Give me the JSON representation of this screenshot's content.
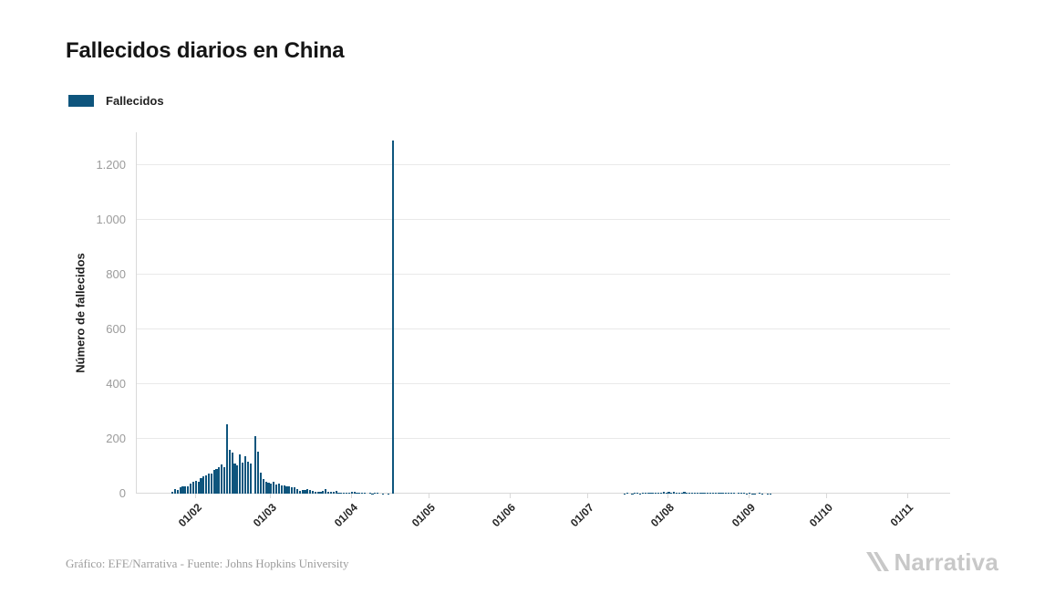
{
  "header": {
    "title": "Fallecidos diarios en China"
  },
  "legend": {
    "label": "Fallecidos"
  },
  "footer": {
    "credit": "Gráfico: EFE/Narrativa - Fuente: Johns Hopkins University",
    "brand": "Narrativa"
  },
  "colors": {
    "bar": "#0e557d",
    "grid": "#e9e9e9",
    "axis_line": "#d9d9d9",
    "y_tick_text": "#9b9b9b",
    "x_tick_text": "#262626",
    "footer_text": "#9c9c9c",
    "brand_gray": "#c8c8c8"
  },
  "chart_data": {
    "type": "bar",
    "title": "Fallecidos diarios en China",
    "xlabel": "",
    "ylabel": "Número de fallecidos",
    "ylim": [
      0,
      1300
    ],
    "grid": "horizontal",
    "legend_position": "top-left",
    "legend_entries": [
      "Fallecidos"
    ],
    "yticks": [
      {
        "label": "0",
        "value": 0
      },
      {
        "label": "200",
        "value": 200
      },
      {
        "label": "400",
        "value": 400
      },
      {
        "label": "600",
        "value": 600
      },
      {
        "label": "800",
        "value": 800
      },
      {
        "label": "1.000",
        "value": 1000
      },
      {
        "label": "1.200",
        "value": 1200
      }
    ],
    "xticks": [
      {
        "label": "01/02",
        "day_index": 9
      },
      {
        "label": "01/03",
        "day_index": 38
      },
      {
        "label": "01/04",
        "day_index": 69
      },
      {
        "label": "01/05",
        "day_index": 99
      },
      {
        "label": "01/06",
        "day_index": 130
      },
      {
        "label": "01/07",
        "day_index": 160
      },
      {
        "label": "01/08",
        "day_index": 191
      },
      {
        "label": "01/09",
        "day_index": 222
      },
      {
        "label": "01/10",
        "day_index": 252
      },
      {
        "label": "01/11",
        "day_index": 283
      }
    ],
    "series": [
      {
        "name": "Fallecidos",
        "color": "#0e557d",
        "start_date": "23/01/2020",
        "peak_value": 1290,
        "peak_date": "17/04/2020",
        "daily_values": [
          8,
          16,
          15,
          24,
          26,
          26,
          26,
          38,
          43,
          46,
          45,
          57,
          64,
          66,
          73,
          73,
          86,
          89,
          97,
          108,
          97,
          254,
          160,
          149,
          110,
          105,
          143,
          115,
          138,
          118,
          110,
          0,
          210,
          155,
          76,
          52,
          45,
          40,
          38,
          42,
          33,
          38,
          31,
          30,
          28,
          27,
          22,
          22,
          16,
          11,
          13,
          13,
          16,
          14,
          11,
          8,
          6,
          7,
          10,
          16,
          7,
          8,
          6,
          9,
          5,
          3,
          5,
          5,
          4,
          7,
          6,
          4,
          3,
          3,
          2,
          0,
          2,
          1,
          3,
          2,
          0,
          1,
          0,
          1,
          0,
          1290,
          0,
          0,
          0,
          0,
          0,
          0,
          0,
          0,
          0,
          0,
          0,
          0,
          0,
          0,
          0,
          0,
          0,
          0,
          0,
          0,
          0,
          0,
          0,
          0,
          0,
          0,
          0,
          0,
          0,
          0,
          0,
          0,
          0,
          0,
          0,
          0,
          0,
          0,
          0,
          0,
          0,
          0,
          0,
          0,
          0,
          0,
          0,
          0,
          0,
          0,
          0,
          0,
          0,
          0,
          0,
          0,
          0,
          0,
          0,
          0,
          0,
          0,
          0,
          0,
          0,
          0,
          0,
          0,
          0,
          0,
          0,
          0,
          0,
          0,
          0,
          0,
          0,
          0,
          0,
          0,
          0,
          0,
          0,
          0,
          0,
          0,
          0,
          0,
          1,
          2,
          0,
          1,
          3,
          2,
          1,
          2,
          3,
          4,
          3,
          5,
          4,
          3,
          5,
          6,
          5,
          6,
          5,
          6,
          4,
          5,
          5,
          6,
          5,
          4,
          3,
          4,
          3,
          5,
          3,
          3,
          4,
          3,
          3,
          4,
          2,
          2,
          3,
          2,
          2,
          3,
          2,
          0,
          2,
          2,
          2,
          1,
          2,
          1,
          1,
          0,
          2,
          1,
          0,
          1,
          1,
          0
        ]
      }
    ]
  }
}
